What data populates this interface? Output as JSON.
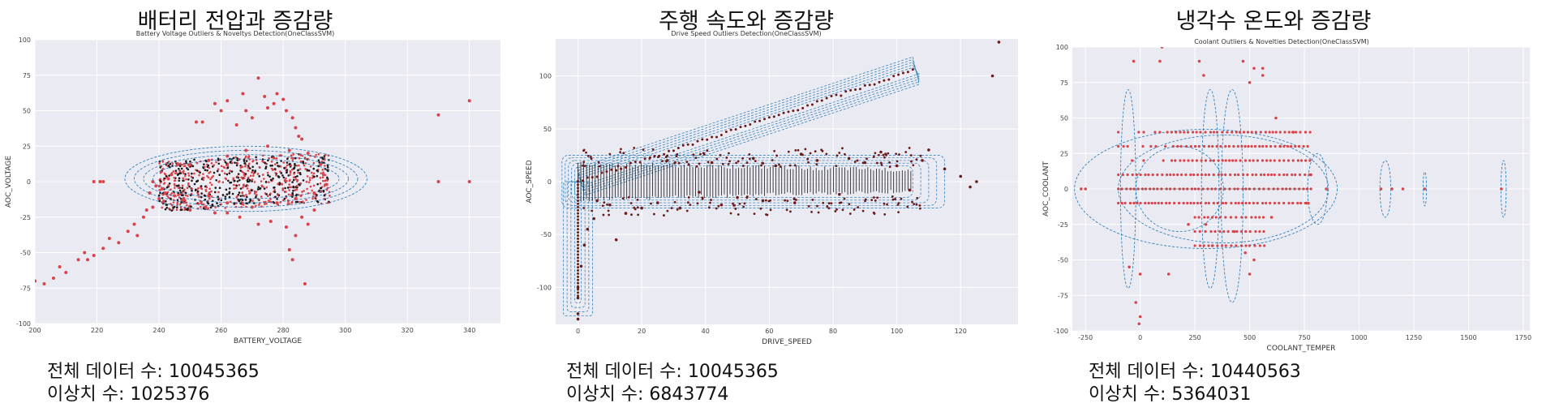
{
  "chart_data": [
    {
      "type": "scatter",
      "heading": "배터리 전압과 증감량",
      "title": "Battery Voltage Outliers & Noveltys Detection(OneClassSVM)",
      "xlabel": "BATTERY_VOLTAGE",
      "ylabel": "AOC_VOLTAGE",
      "xlim": [
        200,
        350
      ],
      "ylim": [
        -100,
        100
      ],
      "xticks": [
        200,
        220,
        240,
        260,
        280,
        300,
        320,
        340
      ],
      "yticks": [
        -100,
        -75,
        -50,
        -25,
        0,
        25,
        50,
        75,
        100
      ],
      "grid": true,
      "point_color": "#d9434a",
      "contour_color": "#1f77b4",
      "points": [
        [
          200,
          -70
        ],
        [
          203,
          -72
        ],
        [
          206,
          -68
        ],
        [
          208,
          -60
        ],
        [
          210,
          -64
        ],
        [
          214,
          -55
        ],
        [
          216,
          -50
        ],
        [
          217,
          -55
        ],
        [
          219,
          -52
        ],
        [
          222,
          -47
        ],
        [
          224,
          -40
        ],
        [
          227,
          -43
        ],
        [
          230,
          -35
        ],
        [
          232,
          -30
        ],
        [
          233,
          -38
        ],
        [
          235,
          -25
        ],
        [
          236,
          -20
        ],
        [
          238,
          -18
        ],
        [
          240,
          -12
        ],
        [
          242,
          -8
        ],
        [
          241,
          -5
        ],
        [
          243,
          2
        ],
        [
          238,
          0
        ],
        [
          239,
          -3
        ],
        [
          237,
          -8
        ],
        [
          219,
          0
        ],
        [
          221,
          0
        ],
        [
          222,
          0
        ],
        [
          330,
          47
        ],
        [
          340,
          57
        ],
        [
          330,
          0
        ],
        [
          340,
          0
        ],
        [
          252,
          42
        ],
        [
          254,
          42
        ],
        [
          258,
          55
        ],
        [
          260,
          50
        ],
        [
          262,
          57
        ],
        [
          265,
          40
        ],
        [
          267,
          62
        ],
        [
          268,
          50
        ],
        [
          270,
          45
        ],
        [
          272,
          73
        ],
        [
          274,
          60
        ],
        [
          275,
          52
        ],
        [
          277,
          55
        ],
        [
          278,
          62
        ],
        [
          280,
          58
        ],
        [
          281,
          50
        ],
        [
          283,
          45
        ],
        [
          284,
          38
        ],
        [
          285,
          32
        ],
        [
          286,
          30
        ],
        [
          287,
          -72
        ],
        [
          283,
          -55
        ],
        [
          282,
          -48
        ],
        [
          284,
          -38
        ],
        [
          281,
          -32
        ],
        [
          286,
          -25
        ],
        [
          288,
          -30
        ],
        [
          290,
          -20
        ],
        [
          276,
          -28
        ],
        [
          272,
          -30
        ],
        [
          266,
          -25
        ],
        [
          262,
          -22
        ],
        [
          258,
          -22
        ],
        [
          255,
          -18
        ],
        [
          250,
          -20
        ],
        [
          248,
          -12
        ],
        [
          245,
          -10
        ],
        [
          244,
          5
        ],
        [
          246,
          12
        ],
        [
          250,
          12
        ],
        [
          256,
          15
        ],
        [
          262,
          18
        ],
        [
          268,
          22
        ],
        [
          275,
          25
        ],
        [
          282,
          22
        ],
        [
          288,
          20
        ],
        [
          292,
          12
        ],
        [
          293,
          5
        ],
        [
          294,
          -2
        ],
        [
          290,
          -8
        ],
        [
          284,
          -12
        ],
        [
          278,
          -15
        ],
        [
          270,
          -18
        ],
        [
          262,
          -15
        ],
        [
          256,
          -10
        ]
      ],
      "dense_band": {
        "x": [
          240,
          295
        ],
        "y": [
          -25,
          25
        ]
      },
      "contours": [
        {
          "cx": 268,
          "cy": 2,
          "rx": 30,
          "ry": 14
        },
        {
          "cx": 268,
          "cy": 2,
          "rx": 33,
          "ry": 17
        },
        {
          "cx": 268,
          "cy": 2,
          "rx": 36,
          "ry": 20
        },
        {
          "cx": 268,
          "cy": 2,
          "rx": 39,
          "ry": 23
        }
      ],
      "total_label": "전체 데이터 수: 10045365",
      "outlier_label": "이상치 수: 1025376"
    },
    {
      "type": "scatter",
      "heading": "주행 속도와 증감량",
      "title": "Drive Speed Outliers Detection(OneClassSVM)",
      "xlabel": "DRIVE_SPEED",
      "ylabel": "AOC_SPEED",
      "xlim": [
        -7,
        138
      ],
      "ylim": [
        -135,
        135
      ],
      "xticks": [
        0,
        20,
        40,
        60,
        80,
        100,
        120
      ],
      "yticks": [
        -100,
        -50,
        0,
        50,
        100
      ],
      "grid": true,
      "point_color": "#6b1a1a",
      "contour_color": "#1f77b4",
      "diagonal": {
        "from": [
          0,
          0
        ],
        "to": [
          105,
          105
        ]
      },
      "band": {
        "x": [
          0,
          105
        ],
        "y": [
          -15,
          15
        ]
      },
      "vertical": {
        "x": 0,
        "y": [
          -130,
          0
        ]
      },
      "points": [
        [
          132,
          132
        ],
        [
          130,
          100
        ],
        [
          125,
          0
        ],
        [
          123,
          -5
        ],
        [
          120,
          5
        ],
        [
          115,
          12
        ],
        [
          110,
          30
        ],
        [
          108,
          20
        ],
        [
          104,
          -8
        ],
        [
          100,
          15
        ],
        [
          95,
          28
        ],
        [
          90,
          18
        ],
        [
          85,
          22
        ],
        [
          82,
          -12
        ],
        [
          75,
          20
        ],
        [
          70,
          26
        ],
        [
          68,
          -20
        ],
        [
          62,
          15
        ],
        [
          58,
          -18
        ],
        [
          55,
          22
        ],
        [
          50,
          -15
        ],
        [
          45,
          -22
        ],
        [
          42,
          18
        ],
        [
          38,
          -10
        ],
        [
          32,
          -25
        ],
        [
          28,
          20
        ],
        [
          25,
          -20
        ],
        [
          20,
          -25
        ],
        [
          15,
          -30
        ],
        [
          12,
          -55
        ],
        [
          10,
          -22
        ],
        [
          6,
          -18
        ],
        [
          5,
          -35
        ],
        [
          3,
          -45
        ],
        [
          2,
          -60
        ],
        [
          1,
          -80
        ],
        [
          0,
          -100
        ],
        [
          0,
          -110
        ],
        [
          0,
          -125
        ],
        [
          0,
          -130
        ]
      ],
      "total_label": "전체 데이터 수: 10045365",
      "outlier_label": "이상치 수: 6843774"
    },
    {
      "type": "scatter",
      "heading": "냉각수 온도와 증감량",
      "title": "Coolant Outliers & Novelties Detection(OneClassSVM)",
      "xlabel": "COOLANT_TEMPER",
      "ylabel": "AOC_COOLANT",
      "xlim": [
        -310,
        1780
      ],
      "ylim": [
        -100,
        100
      ],
      "xticks": [
        -250,
        0,
        250,
        500,
        750,
        1000,
        1250,
        1500,
        1750
      ],
      "yticks": [
        -100,
        -75,
        -50,
        -25,
        0,
        25,
        50,
        75,
        100
      ],
      "grid": true,
      "point_color": "#d9434a",
      "contour_color": "#1f77b4",
      "rows": [
        -10,
        0,
        10,
        20,
        30,
        40
      ],
      "row_x": [
        -100,
        780
      ],
      "points": [
        [
          -270,
          0
        ],
        [
          -30,
          90
        ],
        [
          90,
          90
        ],
        [
          100,
          100
        ],
        [
          270,
          90
        ],
        [
          290,
          80
        ],
        [
          470,
          90
        ],
        [
          500,
          75
        ],
        [
          520,
          85
        ],
        [
          560,
          85
        ],
        [
          560,
          80
        ],
        [
          -250,
          0
        ],
        [
          -50,
          -55
        ],
        [
          0,
          -60
        ],
        [
          -20,
          -80
        ],
        [
          0,
          -90
        ],
        [
          -5,
          -95
        ],
        [
          130,
          -60
        ],
        [
          300,
          -25
        ],
        [
          330,
          -40
        ],
        [
          480,
          -45
        ],
        [
          520,
          -50
        ],
        [
          500,
          -60
        ],
        [
          430,
          -30
        ],
        [
          220,
          -25
        ],
        [
          600,
          -20
        ],
        [
          620,
          50
        ],
        [
          640,
          30
        ],
        [
          700,
          40
        ],
        [
          760,
          -10
        ],
        [
          780,
          10
        ],
        [
          850,
          0
        ],
        [
          1100,
          0
        ],
        [
          1150,
          0
        ],
        [
          1200,
          0
        ],
        [
          1300,
          0
        ],
        [
          1650,
          0
        ]
      ],
      "contours": [
        {
          "cx": -55,
          "cy": 0,
          "rx": 35,
          "ry": 70
        },
        {
          "cx": 320,
          "cy": 0,
          "rx": 40,
          "ry": 70
        },
        {
          "cx": 420,
          "cy": -5,
          "rx": 50,
          "ry": 75
        },
        {
          "cx": 180,
          "cy": 0,
          "rx": 200,
          "ry": 30
        },
        {
          "cx": 380,
          "cy": 0,
          "rx": 480,
          "ry": 38
        },
        {
          "cx": 300,
          "cy": 0,
          "rx": 600,
          "ry": 42
        },
        {
          "cx": 810,
          "cy": 0,
          "rx": 45,
          "ry": 25
        },
        {
          "cx": 1120,
          "cy": 0,
          "rx": 25,
          "ry": 20
        },
        {
          "cx": 1300,
          "cy": 0,
          "rx": 8,
          "ry": 12
        },
        {
          "cx": 1660,
          "cy": 0,
          "rx": 12,
          "ry": 20
        }
      ],
      "total_label": "전체 데이터 수: 10440563",
      "outlier_label": "이상치 수: 5364031"
    }
  ]
}
